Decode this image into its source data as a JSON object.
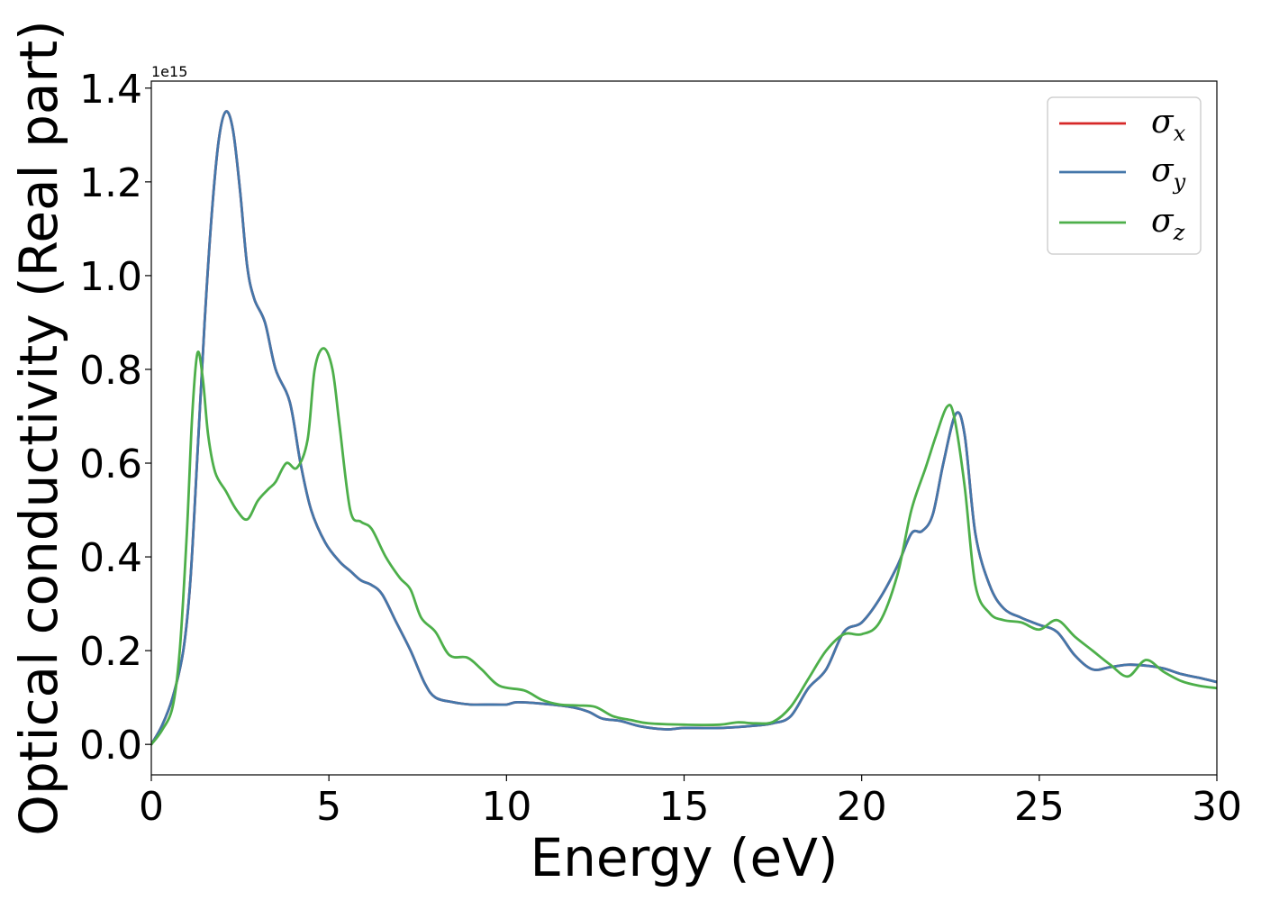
{
  "chart_data": {
    "type": "line",
    "xlabel": "Energy (eV)",
    "ylabel": "Optical conductivity (Real part)",
    "offset_text": "1e15",
    "xlim": [
      0,
      30
    ],
    "ylim": [
      -0.065,
      1.415
    ],
    "x_ticks": [
      0,
      5,
      10,
      15,
      20,
      25,
      30
    ],
    "x_tick_labels": [
      "0",
      "5",
      "10",
      "15",
      "20",
      "25",
      "30"
    ],
    "y_ticks": [
      0.0,
      0.2,
      0.4,
      0.6,
      0.8,
      1.0,
      1.2,
      1.4
    ],
    "y_tick_labels": [
      "0.0",
      "0.2",
      "0.4",
      "0.6",
      "0.8",
      "1.0",
      "1.2",
      "1.4"
    ],
    "grid": false,
    "legend_position": "top-right",
    "series": [
      {
        "name": "σ",
        "subscript": "x",
        "color": "#d62728",
        "points": [
          [
            0,
            0
          ],
          [
            0.3,
            0.04
          ],
          [
            0.6,
            0.1
          ],
          [
            0.9,
            0.2
          ],
          [
            1.1,
            0.35
          ],
          [
            1.3,
            0.62
          ],
          [
            1.5,
            0.9
          ],
          [
            1.7,
            1.13
          ],
          [
            1.9,
            1.29
          ],
          [
            2.1,
            1.35
          ],
          [
            2.3,
            1.31
          ],
          [
            2.5,
            1.18
          ],
          [
            2.7,
            1.02
          ],
          [
            2.9,
            0.95
          ],
          [
            3.2,
            0.9
          ],
          [
            3.5,
            0.8
          ],
          [
            3.9,
            0.73
          ],
          [
            4.2,
            0.6
          ],
          [
            4.5,
            0.5
          ],
          [
            4.9,
            0.43
          ],
          [
            5.3,
            0.39
          ],
          [
            5.6,
            0.37
          ],
          [
            5.9,
            0.35
          ],
          [
            6.2,
            0.34
          ],
          [
            6.5,
            0.32
          ],
          [
            6.9,
            0.26
          ],
          [
            7.3,
            0.2
          ],
          [
            7.7,
            0.13
          ],
          [
            8.0,
            0.1
          ],
          [
            8.5,
            0.09
          ],
          [
            9.0,
            0.085
          ],
          [
            9.5,
            0.085
          ],
          [
            10.0,
            0.085
          ],
          [
            10.3,
            0.09
          ],
          [
            11.0,
            0.087
          ],
          [
            11.8,
            0.08
          ],
          [
            12.3,
            0.07
          ],
          [
            12.7,
            0.055
          ],
          [
            13.2,
            0.05
          ],
          [
            13.8,
            0.038
          ],
          [
            14.5,
            0.032
          ],
          [
            15.0,
            0.035
          ],
          [
            16.0,
            0.035
          ],
          [
            17.0,
            0.04
          ],
          [
            17.5,
            0.045
          ],
          [
            18.0,
            0.06
          ],
          [
            18.5,
            0.12
          ],
          [
            19.0,
            0.16
          ],
          [
            19.5,
            0.24
          ],
          [
            20.0,
            0.26
          ],
          [
            20.5,
            0.31
          ],
          [
            21.0,
            0.38
          ],
          [
            21.4,
            0.45
          ],
          [
            21.7,
            0.455
          ],
          [
            22.0,
            0.49
          ],
          [
            22.3,
            0.6
          ],
          [
            22.65,
            0.705
          ],
          [
            22.9,
            0.66
          ],
          [
            23.2,
            0.45
          ],
          [
            23.6,
            0.34
          ],
          [
            24.0,
            0.29
          ],
          [
            24.5,
            0.27
          ],
          [
            25.0,
            0.255
          ],
          [
            25.5,
            0.24
          ],
          [
            26.0,
            0.19
          ],
          [
            26.5,
            0.16
          ],
          [
            27.0,
            0.165
          ],
          [
            27.5,
            0.17
          ],
          [
            28.0,
            0.168
          ],
          [
            28.5,
            0.162
          ],
          [
            29.0,
            0.15
          ],
          [
            29.5,
            0.142
          ],
          [
            30.0,
            0.133
          ]
        ]
      },
      {
        "name": "σ",
        "subscript": "y",
        "color": "#4477aa",
        "points": [
          [
            0,
            0
          ],
          [
            0.3,
            0.04
          ],
          [
            0.6,
            0.1
          ],
          [
            0.9,
            0.2
          ],
          [
            1.1,
            0.35
          ],
          [
            1.3,
            0.62
          ],
          [
            1.5,
            0.9
          ],
          [
            1.7,
            1.13
          ],
          [
            1.9,
            1.29
          ],
          [
            2.1,
            1.35
          ],
          [
            2.3,
            1.31
          ],
          [
            2.5,
            1.18
          ],
          [
            2.7,
            1.02
          ],
          [
            2.9,
            0.95
          ],
          [
            3.2,
            0.9
          ],
          [
            3.5,
            0.8
          ],
          [
            3.9,
            0.73
          ],
          [
            4.2,
            0.6
          ],
          [
            4.5,
            0.5
          ],
          [
            4.9,
            0.43
          ],
          [
            5.3,
            0.39
          ],
          [
            5.6,
            0.37
          ],
          [
            5.9,
            0.35
          ],
          [
            6.2,
            0.34
          ],
          [
            6.5,
            0.32
          ],
          [
            6.9,
            0.26
          ],
          [
            7.3,
            0.2
          ],
          [
            7.7,
            0.13
          ],
          [
            8.0,
            0.1
          ],
          [
            8.5,
            0.09
          ],
          [
            9.0,
            0.085
          ],
          [
            9.5,
            0.085
          ],
          [
            10.0,
            0.085
          ],
          [
            10.3,
            0.09
          ],
          [
            11.0,
            0.087
          ],
          [
            11.8,
            0.08
          ],
          [
            12.3,
            0.07
          ],
          [
            12.7,
            0.055
          ],
          [
            13.2,
            0.05
          ],
          [
            13.8,
            0.038
          ],
          [
            14.5,
            0.032
          ],
          [
            15.0,
            0.035
          ],
          [
            16.0,
            0.035
          ],
          [
            17.0,
            0.04
          ],
          [
            17.5,
            0.045
          ],
          [
            18.0,
            0.06
          ],
          [
            18.5,
            0.12
          ],
          [
            19.0,
            0.16
          ],
          [
            19.5,
            0.24
          ],
          [
            20.0,
            0.26
          ],
          [
            20.5,
            0.31
          ],
          [
            21.0,
            0.38
          ],
          [
            21.4,
            0.45
          ],
          [
            21.7,
            0.455
          ],
          [
            22.0,
            0.49
          ],
          [
            22.3,
            0.6
          ],
          [
            22.65,
            0.705
          ],
          [
            22.9,
            0.66
          ],
          [
            23.2,
            0.45
          ],
          [
            23.6,
            0.34
          ],
          [
            24.0,
            0.29
          ],
          [
            24.5,
            0.27
          ],
          [
            25.0,
            0.255
          ],
          [
            25.5,
            0.24
          ],
          [
            26.0,
            0.19
          ],
          [
            26.5,
            0.16
          ],
          [
            27.0,
            0.165
          ],
          [
            27.5,
            0.17
          ],
          [
            28.0,
            0.168
          ],
          [
            28.5,
            0.162
          ],
          [
            29.0,
            0.15
          ],
          [
            29.5,
            0.142
          ],
          [
            30.0,
            0.133
          ]
        ]
      },
      {
        "name": "σ",
        "subscript": "z",
        "color": "#4daf4a",
        "points": [
          [
            0,
            0
          ],
          [
            0.3,
            0.03
          ],
          [
            0.6,
            0.08
          ],
          [
            0.8,
            0.2
          ],
          [
            1.0,
            0.45
          ],
          [
            1.15,
            0.7
          ],
          [
            1.3,
            0.835
          ],
          [
            1.45,
            0.78
          ],
          [
            1.6,
            0.66
          ],
          [
            1.8,
            0.58
          ],
          [
            2.1,
            0.54
          ],
          [
            2.4,
            0.5
          ],
          [
            2.7,
            0.48
          ],
          [
            3.0,
            0.52
          ],
          [
            3.3,
            0.545
          ],
          [
            3.5,
            0.56
          ],
          [
            3.8,
            0.6
          ],
          [
            4.1,
            0.59
          ],
          [
            4.4,
            0.65
          ],
          [
            4.6,
            0.8
          ],
          [
            4.85,
            0.845
          ],
          [
            5.1,
            0.8
          ],
          [
            5.3,
            0.68
          ],
          [
            5.6,
            0.5
          ],
          [
            5.9,
            0.475
          ],
          [
            6.2,
            0.46
          ],
          [
            6.6,
            0.4
          ],
          [
            7.0,
            0.355
          ],
          [
            7.3,
            0.33
          ],
          [
            7.6,
            0.27
          ],
          [
            8.0,
            0.24
          ],
          [
            8.4,
            0.19
          ],
          [
            8.9,
            0.185
          ],
          [
            9.3,
            0.16
          ],
          [
            9.8,
            0.125
          ],
          [
            10.5,
            0.115
          ],
          [
            11.0,
            0.095
          ],
          [
            11.5,
            0.085
          ],
          [
            12.0,
            0.083
          ],
          [
            12.5,
            0.08
          ],
          [
            13.0,
            0.06
          ],
          [
            13.5,
            0.052
          ],
          [
            14.0,
            0.045
          ],
          [
            15.0,
            0.042
          ],
          [
            16.0,
            0.042
          ],
          [
            16.5,
            0.047
          ],
          [
            17.0,
            0.045
          ],
          [
            17.5,
            0.048
          ],
          [
            18.0,
            0.08
          ],
          [
            18.5,
            0.14
          ],
          [
            19.0,
            0.2
          ],
          [
            19.5,
            0.235
          ],
          [
            20.0,
            0.235
          ],
          [
            20.5,
            0.26
          ],
          [
            21.0,
            0.36
          ],
          [
            21.4,
            0.5
          ],
          [
            21.8,
            0.59
          ],
          [
            22.1,
            0.66
          ],
          [
            22.4,
            0.72
          ],
          [
            22.6,
            0.7
          ],
          [
            22.9,
            0.55
          ],
          [
            23.2,
            0.34
          ],
          [
            23.6,
            0.28
          ],
          [
            24.0,
            0.265
          ],
          [
            24.5,
            0.26
          ],
          [
            25.0,
            0.245
          ],
          [
            25.5,
            0.265
          ],
          [
            26.0,
            0.23
          ],
          [
            26.5,
            0.2
          ],
          [
            27.0,
            0.17
          ],
          [
            27.5,
            0.145
          ],
          [
            28.0,
            0.18
          ],
          [
            28.5,
            0.155
          ],
          [
            29.0,
            0.135
          ],
          [
            29.5,
            0.125
          ],
          [
            30.0,
            0.12
          ]
        ]
      }
    ]
  }
}
